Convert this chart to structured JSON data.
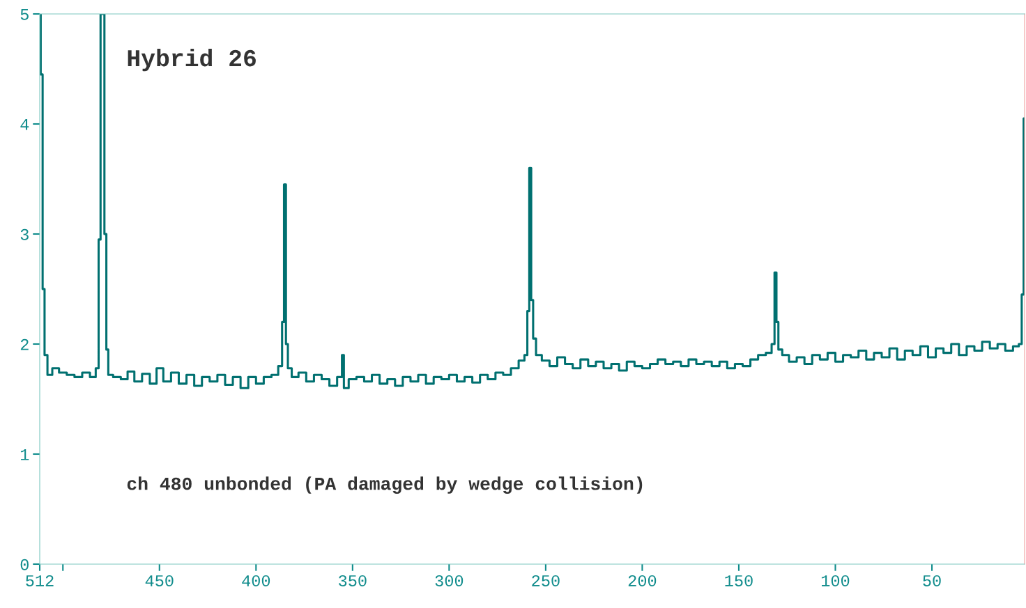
{
  "chart_data": {
    "type": "step",
    "title": "Hybrid 26",
    "annotations": [
      "ch 480 unbonded (PA damaged by wedge collision)"
    ],
    "x": [
      512,
      511,
      510,
      509,
      507,
      504,
      500,
      496,
      492,
      488,
      484,
      482,
      481,
      480,
      479,
      478,
      477,
      476,
      472,
      468,
      465,
      461,
      457,
      453,
      450,
      446,
      442,
      438,
      434,
      430,
      426,
      422,
      418,
      414,
      410,
      406,
      402,
      398,
      394,
      390,
      387,
      386,
      385,
      384,
      383,
      380,
      376,
      372,
      368,
      364,
      360,
      356,
      355,
      354,
      350,
      346,
      342,
      338,
      334,
      330,
      326,
      322,
      318,
      314,
      310,
      306,
      302,
      298,
      294,
      290,
      286,
      282,
      278,
      274,
      270,
      266,
      262,
      260,
      259,
      258,
      257,
      256,
      254,
      250,
      246,
      242,
      238,
      234,
      230,
      226,
      222,
      218,
      214,
      210,
      206,
      202,
      198,
      194,
      190,
      186,
      182,
      178,
      174,
      170,
      166,
      162,
      158,
      154,
      150,
      146,
      142,
      138,
      134,
      132,
      131,
      130,
      129,
      126,
      122,
      118,
      114,
      110,
      106,
      102,
      98,
      94,
      90,
      86,
      82,
      78,
      74,
      70,
      66,
      62,
      58,
      54,
      50,
      46,
      42,
      38,
      34,
      30,
      26,
      22,
      18,
      14,
      10,
      6,
      4,
      3,
      2
    ],
    "series": [
      {
        "color": "#007070",
        "values": [
          5,
          4.45,
          2.5,
          1.9,
          1.72,
          1.78,
          1.74,
          1.72,
          1.7,
          1.74,
          1.7,
          1.78,
          2.95,
          5,
          5,
          3.0,
          1.95,
          1.72,
          1.7,
          1.68,
          1.75,
          1.66,
          1.73,
          1.64,
          1.78,
          1.66,
          1.74,
          1.64,
          1.72,
          1.62,
          1.7,
          1.66,
          1.72,
          1.63,
          1.7,
          1.6,
          1.7,
          1.64,
          1.7,
          1.72,
          1.8,
          2.2,
          3.45,
          2.0,
          1.78,
          1.7,
          1.74,
          1.66,
          1.72,
          1.68,
          1.62,
          1.7,
          1.9,
          1.6,
          1.68,
          1.7,
          1.66,
          1.72,
          1.64,
          1.68,
          1.62,
          1.7,
          1.66,
          1.72,
          1.64,
          1.7,
          1.68,
          1.72,
          1.66,
          1.7,
          1.65,
          1.72,
          1.68,
          1.74,
          1.72,
          1.78,
          1.85,
          1.9,
          2.3,
          3.6,
          2.4,
          2.05,
          1.9,
          1.85,
          1.8,
          1.88,
          1.82,
          1.78,
          1.86,
          1.8,
          1.84,
          1.78,
          1.82,
          1.76,
          1.84,
          1.8,
          1.78,
          1.82,
          1.86,
          1.82,
          1.84,
          1.8,
          1.86,
          1.82,
          1.84,
          1.8,
          1.84,
          1.78,
          1.82,
          1.8,
          1.86,
          1.9,
          1.92,
          2.0,
          2.65,
          2.2,
          1.95,
          1.9,
          1.84,
          1.88,
          1.82,
          1.9,
          1.86,
          1.92,
          1.84,
          1.9,
          1.88,
          1.94,
          1.86,
          1.92,
          1.88,
          1.96,
          1.86,
          1.94,
          1.9,
          1.98,
          1.88,
          1.96,
          1.92,
          2.0,
          1.9,
          1.98,
          1.94,
          2.02,
          1.96,
          2.0,
          1.94,
          1.98,
          2.0,
          2.45,
          4.05
        ]
      }
    ],
    "xlim": [
      512,
      2
    ],
    "xticks": [
      512,
      {
        "value": 500,
        "label": null
      },
      450,
      400,
      350,
      300,
      250,
      200,
      150,
      100,
      50
    ],
    "ylim": [
      0,
      5
    ],
    "yticks": [
      0,
      1,
      2,
      3,
      4,
      5
    ],
    "grid": false,
    "legend": false
  }
}
